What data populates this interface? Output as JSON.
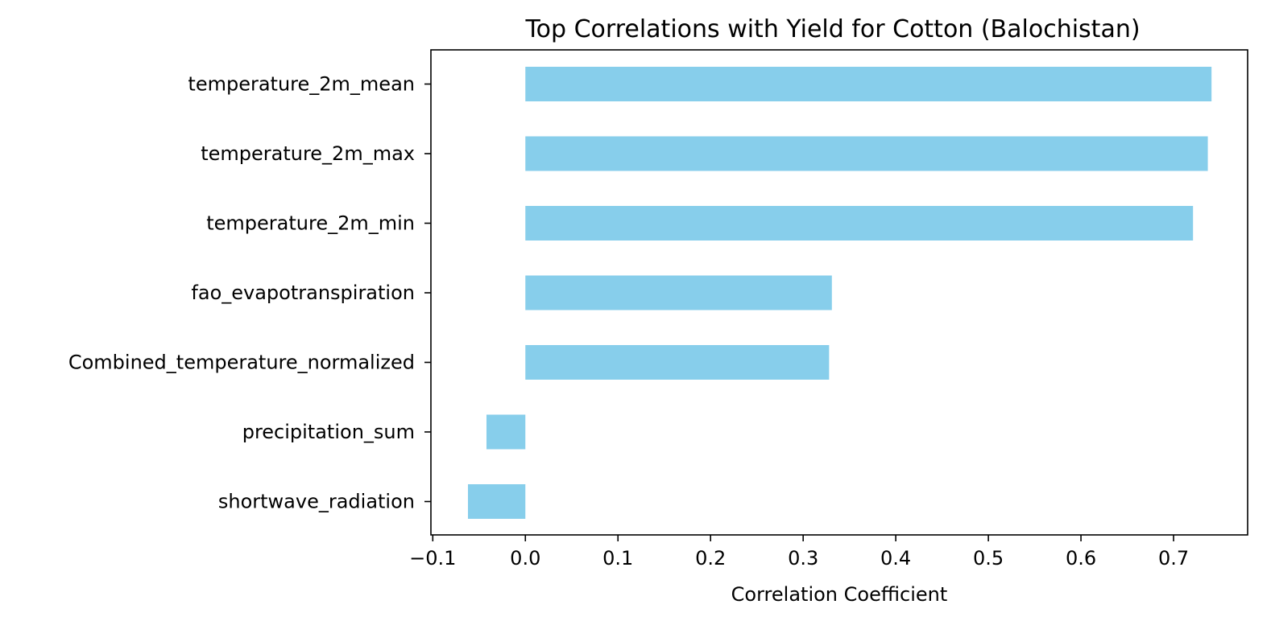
{
  "chart_data": {
    "type": "bar",
    "orientation": "horizontal",
    "title": "Top Correlations with Yield for Cotton (Balochistan)",
    "xlabel": "Correlation Coefficient",
    "ylabel": "",
    "categories": [
      "temperature_2m_mean",
      "temperature_2m_max",
      "temperature_2m_min",
      "fao_evapotranspiration",
      "Combined_temperature_normalized",
      "precipitation_sum",
      "shortwave_radiation"
    ],
    "values": [
      0.741,
      0.737,
      0.721,
      0.331,
      0.328,
      -0.042,
      -0.062
    ],
    "xlim": [
      -0.102,
      0.78
    ],
    "xticks": [
      -0.1,
      0.0,
      0.1,
      0.2,
      0.3,
      0.4,
      0.5,
      0.6,
      0.7
    ],
    "xtick_labels": [
      "−0.1",
      "0.0",
      "0.1",
      "0.2",
      "0.3",
      "0.4",
      "0.5",
      "0.6",
      "0.7"
    ],
    "bar_color": "#87CEEB",
    "grid": false,
    "legend": "none"
  }
}
